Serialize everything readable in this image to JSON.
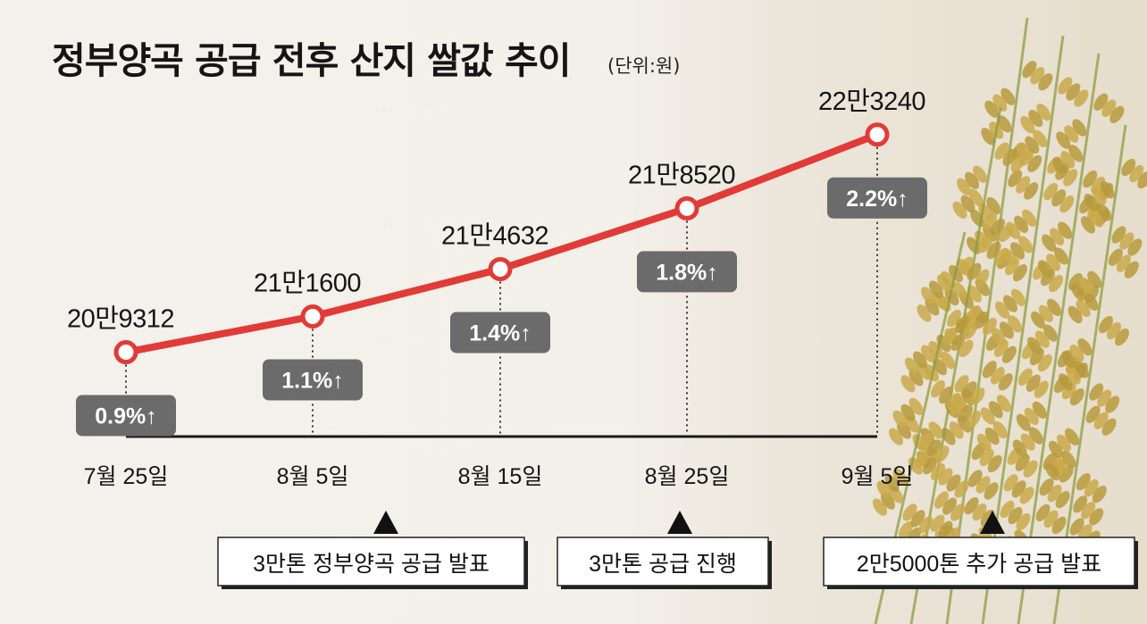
{
  "title": "정부양곡 공급 전후 산지 쌀값 추이",
  "unit": "(단위:원)",
  "colors": {
    "line": "#e23a36",
    "badge": "#6b6b6b",
    "axis": "#1a1a1a",
    "text": "#151515"
  },
  "chart_data": {
    "type": "line",
    "title": "정부양곡 공급 전후 산지 쌀값 추이",
    "unit": "(단위:원)",
    "categories": [
      "7월 25일",
      "8월 5일",
      "8월 15일",
      "8월 25일",
      "9월 5일"
    ],
    "series": [
      {
        "values": [
          209312,
          211600,
          214632,
          218520,
          223240
        ],
        "value_labels": [
          "20만9312",
          "21만1600",
          "21만4632",
          "21만8520",
          "22만3240"
        ],
        "change_labels": [
          "0.9%↑",
          "1.1%↑",
          "1.4%↑",
          "1.8%↑",
          "2.2%↑"
        ]
      }
    ],
    "grid": false,
    "annotations": [
      {
        "text": "3만톤 정부양곡 공급 발표"
      },
      {
        "text": "3만톤 공급 진행"
      },
      {
        "text": "2만5000톤 추가 공급 발표"
      }
    ]
  }
}
